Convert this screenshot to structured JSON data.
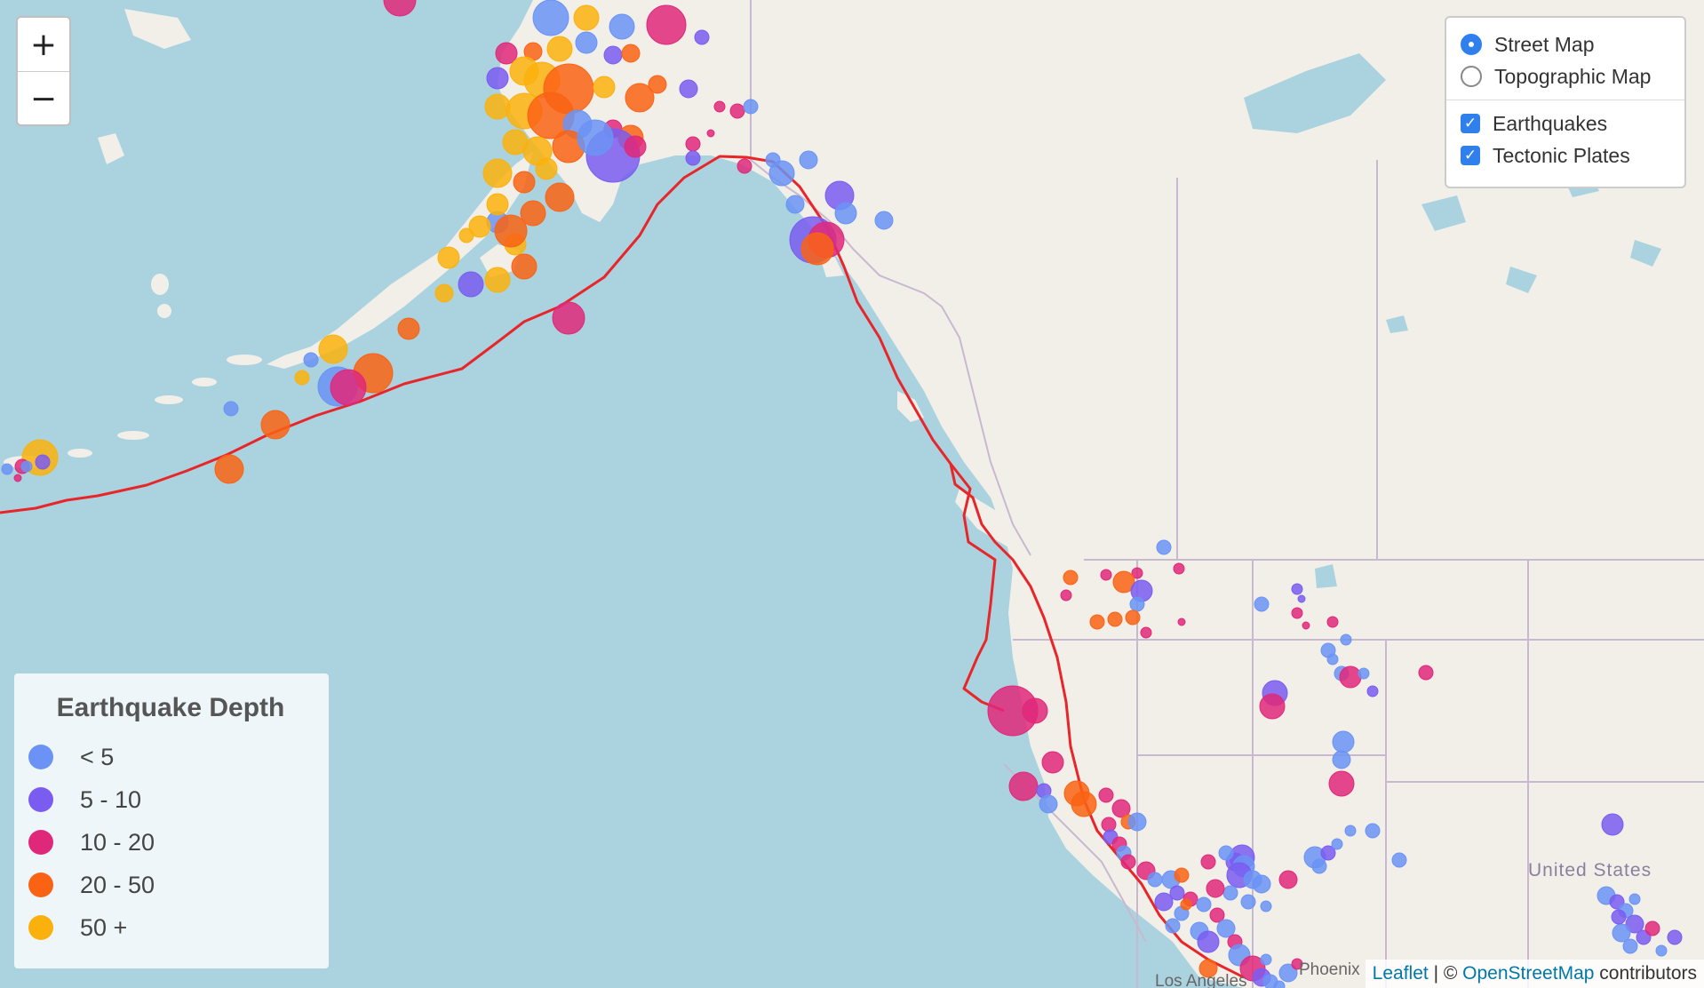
{
  "map": {
    "zoom_in_label": "+",
    "zoom_out_label": "−",
    "place_labels": [
      "United States",
      "Phoenix",
      "Los Angeles"
    ]
  },
  "layers": {
    "base": [
      {
        "label": "Street Map",
        "selected": true
      },
      {
        "label": "Topographic Map",
        "selected": false
      }
    ],
    "overlays": [
      {
        "label": "Earthquakes",
        "checked": true
      },
      {
        "label": "Tectonic Plates",
        "checked": true
      }
    ]
  },
  "legend": {
    "title": "Earthquake Depth",
    "items": [
      {
        "label": "< 5",
        "color": "#6b93f5"
      },
      {
        "label": "5 - 10",
        "color": "#7a5cf0"
      },
      {
        "label": "10 - 20",
        "color": "#e0287a"
      },
      {
        "label": "20 - 50",
        "color": "#fa6314"
      },
      {
        "label": "50 +",
        "color": "#fbb10d"
      }
    ]
  },
  "attribution": {
    "leaflet": "Leaflet",
    "separator": " | © ",
    "osm": "OpenStreetMap",
    "suffix": " contributors"
  },
  "colors": {
    "water": "#aad3df",
    "land": "#f2efe9",
    "plate_boundary": "#e8262a",
    "border": "#c8b8d0"
  }
}
